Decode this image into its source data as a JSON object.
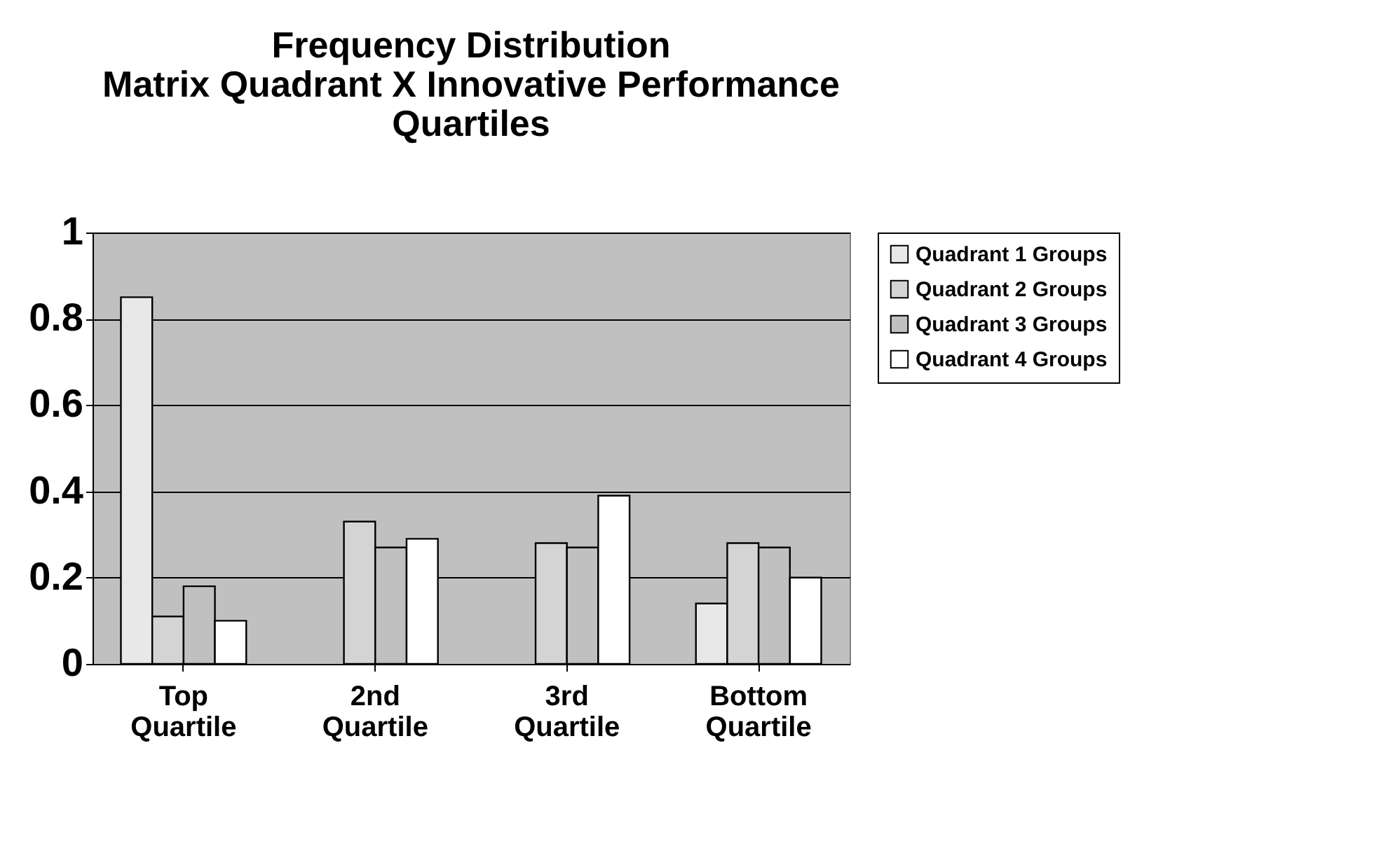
{
  "chart_data": {
    "type": "bar",
    "title": "Frequency Distribution\nMatrix Quadrant X Innovative Performance\nQuartiles",
    "categories": [
      "Top Quartile",
      "2nd Quartile",
      "3rd Quartile",
      "Bottom Quartile"
    ],
    "series": [
      {
        "name": "Quadrant 1 Groups",
        "color": "#e8e8e8",
        "values": [
          0.85,
          0,
          0,
          0.14
        ]
      },
      {
        "name": "Quadrant 2 Groups",
        "color": "#d4d4d4",
        "values": [
          0.11,
          0.33,
          0.28,
          0.28
        ]
      },
      {
        "name": "Quadrant 3 Groups",
        "color": "#c0c0c0",
        "values": [
          0.18,
          0.27,
          0.27,
          0.27
        ]
      },
      {
        "name": "Quadrant 4 Groups",
        "color": "#ffffff",
        "values": [
          0.1,
          0.29,
          0.39,
          0.2
        ]
      }
    ],
    "ylim": [
      0,
      1
    ],
    "yticks": [
      0,
      0.2,
      0.4,
      0.6,
      0.8,
      1
    ],
    "grid": "y",
    "legend": "right"
  }
}
